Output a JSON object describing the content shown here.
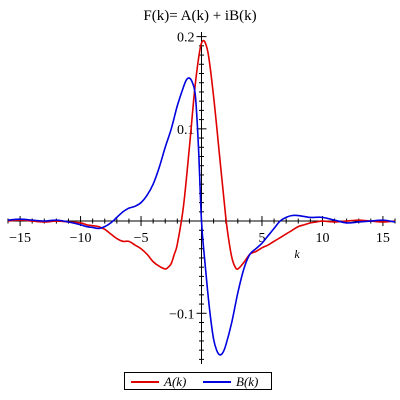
{
  "chart_data": {
    "type": "line",
    "title": "F(k)= A(k) + iB(k)",
    "xlabel": "k",
    "ylabel": "",
    "xlim": [
      -16,
      16
    ],
    "ylim": [
      -0.155,
      0.205
    ],
    "x_ticks": [
      -15,
      -10,
      -5,
      0,
      5,
      10,
      15
    ],
    "x_tick_labels": [
      "-15",
      "-10",
      "-5",
      "0",
      "5",
      "10",
      "15"
    ],
    "y_ticks": [
      -0.1,
      0.1,
      0.2
    ],
    "y_tick_labels": [
      "-0.1",
      "0.1",
      "0.2"
    ],
    "grid": false,
    "legend_position": "bottom",
    "series": [
      {
        "name": "A(k)",
        "color": "#e00000",
        "x": [
          -16,
          -15,
          -14,
          -13,
          -12,
          -11,
          -10,
          -9.5,
          -9,
          -8.5,
          -8,
          -7.5,
          -7,
          -6.5,
          -6,
          -5.5,
          -5,
          -4.5,
          -4,
          -3.5,
          -3,
          -2.75,
          -2.5,
          -2.25,
          -2,
          -1.5,
          -1,
          -0.5,
          0,
          0.5,
          1,
          1.5,
          2,
          2.25,
          2.5,
          2.75,
          3,
          3.5,
          4,
          4.5,
          5,
          5.5,
          6,
          6.5,
          7,
          7.5,
          8,
          8.5,
          9,
          9.5,
          10,
          11,
          12,
          13,
          14,
          15,
          16
        ],
        "values": [
          0.0,
          0.001,
          0.0,
          -0.001,
          0.0,
          -0.001,
          -0.002,
          -0.004,
          -0.005,
          -0.006,
          -0.009,
          -0.014,
          -0.019,
          -0.022,
          -0.022,
          -0.026,
          -0.03,
          -0.036,
          -0.044,
          -0.049,
          -0.052,
          -0.05,
          -0.046,
          -0.036,
          -0.025,
          0.015,
          0.08,
          0.15,
          0.193,
          0.185,
          0.135,
          0.07,
          0.005,
          -0.02,
          -0.039,
          -0.049,
          -0.052,
          -0.045,
          -0.036,
          -0.033,
          -0.029,
          -0.026,
          -0.022,
          -0.018,
          -0.014,
          -0.01,
          -0.006,
          -0.004,
          -0.002,
          -0.001,
          0.0,
          -0.001,
          0.0,
          0.001,
          0.0,
          -0.001,
          0.0
        ]
      },
      {
        "name": "B(k)",
        "color": "#0000e0",
        "x": [
          -16,
          -15,
          -14,
          -13,
          -12,
          -11,
          -10,
          -9.5,
          -9,
          -8.5,
          -8,
          -7.5,
          -7,
          -6.5,
          -6,
          -5.5,
          -5,
          -4.5,
          -4,
          -3.5,
          -3,
          -2.5,
          -2,
          -1.5,
          -1.25,
          -1,
          -0.75,
          -0.5,
          -0.25,
          0,
          0.25,
          0.5,
          0.75,
          1,
          1.25,
          1.5,
          1.75,
          2,
          2.5,
          3,
          3.5,
          4,
          4.5,
          5,
          5.5,
          6,
          6.5,
          7,
          7.5,
          8,
          9,
          10,
          11,
          12,
          13,
          14,
          15,
          16
        ],
        "values": [
          0.001,
          0.002,
          0.001,
          0.0,
          0.001,
          -0.001,
          -0.004,
          -0.006,
          -0.007,
          -0.008,
          -0.006,
          -0.002,
          0.004,
          0.01,
          0.014,
          0.016,
          0.02,
          0.028,
          0.04,
          0.058,
          0.08,
          0.1,
          0.125,
          0.145,
          0.153,
          0.155,
          0.15,
          0.135,
          0.08,
          0.0,
          -0.04,
          -0.075,
          -0.105,
          -0.128,
          -0.14,
          -0.145,
          -0.143,
          -0.135,
          -0.11,
          -0.078,
          -0.052,
          -0.036,
          -0.03,
          -0.024,
          -0.016,
          -0.008,
          0.0,
          0.004,
          0.006,
          0.006,
          0.004,
          0.004,
          0.001,
          -0.002,
          -0.001,
          0.0,
          0.001,
          -0.001
        ]
      }
    ]
  }
}
